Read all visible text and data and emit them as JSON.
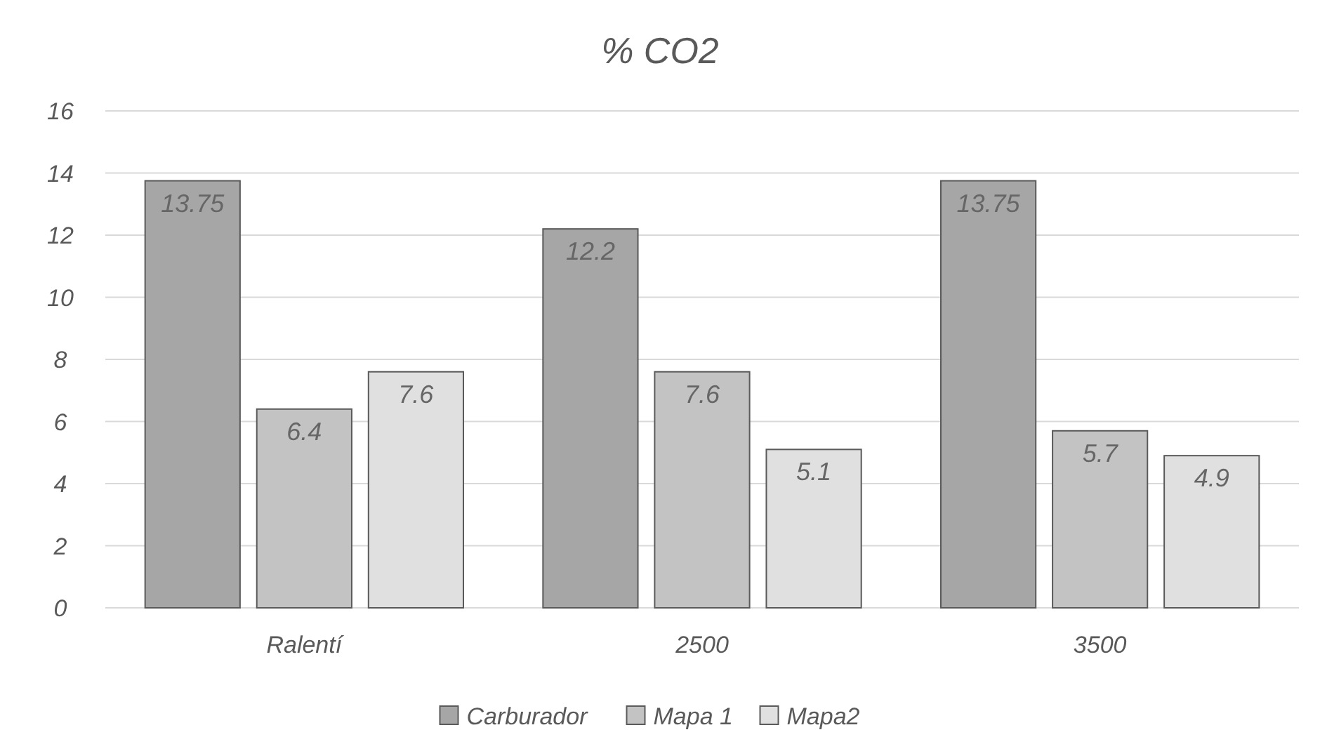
{
  "chart_data": {
    "type": "bar",
    "title": "% CO2",
    "categories": [
      "Ralentí",
      "2500",
      "3500"
    ],
    "series": [
      {
        "name": "Carburador",
        "color": "#a6a6a6",
        "values": [
          13.75,
          12.2,
          13.75
        ]
      },
      {
        "name": "Mapa 1",
        "color": "#c3c3c3",
        "values": [
          6.4,
          7.6,
          5.7
        ]
      },
      {
        "name": "Mapa2",
        "color": "#e0e0e0",
        "values": [
          7.6,
          5.1,
          4.9
        ]
      }
    ],
    "ylim": [
      0,
      16
    ],
    "yticks": [
      0,
      2,
      4,
      6,
      8,
      10,
      12,
      14,
      16
    ],
    "grid": "y",
    "legend": "bottom",
    "data_labels": true
  }
}
